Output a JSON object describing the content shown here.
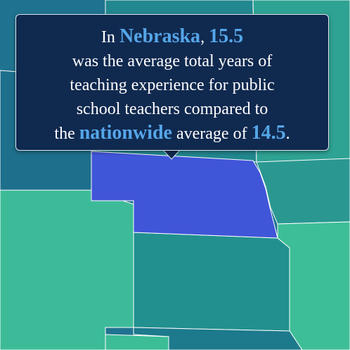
{
  "tooltip": {
    "line1": {
      "prefix": "In",
      "state": "Nebraska",
      "comma": ",",
      "value": "15.5"
    },
    "line2": "was the average total years of",
    "line3": "teaching experience for public",
    "line4": "school teachers compared to",
    "line5": {
      "prefix": "the",
      "scope": "nationwide",
      "middle": "average of",
      "value": "14.5",
      "end": "."
    }
  }
}
